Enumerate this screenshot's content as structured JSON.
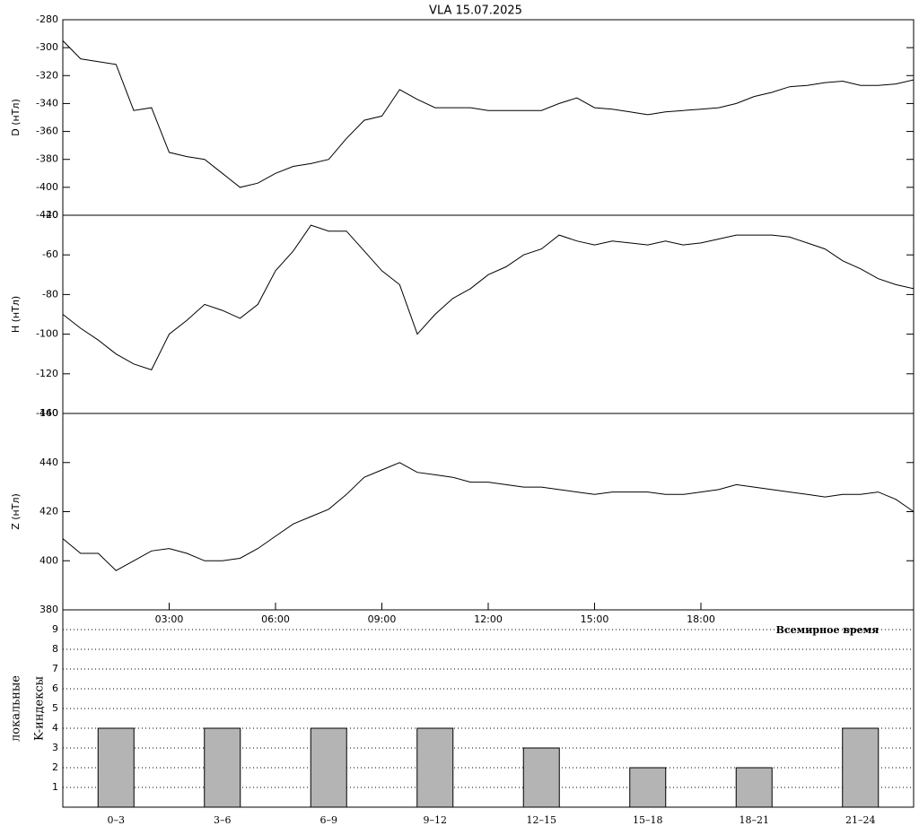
{
  "chart_data": [
    {
      "type": "line",
      "title": "VLA   15.07.2025",
      "ylabel": "D (нТл)",
      "color": "#000000",
      "x": [
        0,
        0.5,
        1,
        1.5,
        2,
        2.5,
        3,
        3.5,
        4,
        4.5,
        5,
        5.5,
        6,
        6.5,
        7,
        7.5,
        8,
        8.5,
        9,
        9.5,
        10,
        10.5,
        11,
        11.5,
        12,
        12.5,
        13,
        13.5,
        14,
        14.5,
        15,
        15.5,
        16,
        16.5,
        17,
        17.5,
        18,
        18.5,
        19,
        19.5,
        20,
        20.5,
        21,
        21.5,
        22,
        22.5,
        23,
        23.5,
        24
      ],
      "values": [
        -295,
        -308,
        -310,
        -312,
        -345,
        -343,
        -375,
        -378,
        -380,
        -390,
        -400,
        -397,
        -390,
        -385,
        -383,
        -380,
        -365,
        -352,
        -349,
        -330,
        -337,
        -343,
        -343,
        -343,
        -345,
        -345,
        -345,
        -345,
        -340,
        -336,
        -343,
        -344,
        -346,
        -348,
        -346,
        -345,
        -344,
        -343,
        -340,
        -335,
        -332,
        -328,
        -327,
        -325,
        -324,
        -327,
        -327,
        -326,
        -323
      ],
      "xlim": [
        0,
        24
      ],
      "ylim": [
        -420,
        -280
      ],
      "yticks": [
        -420,
        -400,
        -380,
        -360,
        -340,
        -320,
        -300,
        -280
      ]
    },
    {
      "type": "line",
      "ylabel": "H (нТл)",
      "color": "#000000",
      "x": [
        0,
        0.5,
        1,
        1.5,
        2,
        2.5,
        3,
        3.5,
        4,
        4.5,
        5,
        5.5,
        6,
        6.5,
        7,
        7.5,
        8,
        8.5,
        9,
        9.5,
        10,
        10.5,
        11,
        11.5,
        12,
        12.5,
        13,
        13.5,
        14,
        14.5,
        15,
        15.5,
        16,
        16.5,
        17,
        17.5,
        18,
        18.5,
        19,
        19.5,
        20,
        20.5,
        21,
        21.5,
        22,
        22.5,
        23,
        23.5,
        24
      ],
      "values": [
        -90,
        -97,
        -103,
        -110,
        -115,
        -118,
        -100,
        -93,
        -85,
        -88,
        -92,
        -85,
        -68,
        -58,
        -45,
        -48,
        -48,
        -58,
        -68,
        -75,
        -100,
        -90,
        -82,
        -77,
        -70,
        -66,
        -60,
        -57,
        -50,
        -53,
        -55,
        -53,
        -54,
        -55,
        -53,
        -55,
        -54,
        -52,
        -50,
        -50,
        -50,
        -51,
        -54,
        -57,
        -63,
        -67,
        -72,
        -75,
        -77
      ],
      "xlim": [
        0,
        24
      ],
      "ylim": [
        -140,
        -40
      ],
      "yticks": [
        -140,
        -120,
        -100,
        -80,
        -60,
        -40
      ]
    },
    {
      "type": "line",
      "ylabel": "Z (нТл)",
      "xlabel": "Всемирное время",
      "color": "#000000",
      "x": [
        0,
        0.5,
        1,
        1.5,
        2,
        2.5,
        3,
        3.5,
        4,
        4.5,
        5,
        5.5,
        6,
        6.5,
        7,
        7.5,
        8,
        8.5,
        9,
        9.5,
        10,
        10.5,
        11,
        11.5,
        12,
        12.5,
        13,
        13.5,
        14,
        14.5,
        15,
        15.5,
        16,
        16.5,
        17,
        17.5,
        18,
        18.5,
        19,
        19.5,
        20,
        20.5,
        21,
        21.5,
        22,
        22.5,
        23,
        23.5,
        24
      ],
      "values": [
        409,
        403,
        403,
        396,
        400,
        404,
        405,
        403,
        400,
        400,
        401,
        405,
        410,
        415,
        418,
        421,
        427,
        434,
        437,
        440,
        436,
        435,
        434,
        432,
        432,
        431,
        430,
        430,
        429,
        428,
        427,
        428,
        428,
        428,
        427,
        427,
        428,
        429,
        431,
        430,
        429,
        428,
        427,
        426,
        427,
        427,
        428,
        425,
        420
      ],
      "xlim": [
        0,
        24
      ],
      "ylim": [
        380,
        460
      ],
      "yticks": [
        380,
        400,
        420,
        440,
        460
      ],
      "xticks": [
        {
          "value": 3,
          "label": "03:00"
        },
        {
          "value": 6,
          "label": "06:00"
        },
        {
          "value": 9,
          "label": "09:00"
        },
        {
          "value": 12,
          "label": "12:00"
        },
        {
          "value": 15,
          "label": "15:00"
        },
        {
          "value": 18,
          "label": "18:00"
        }
      ]
    },
    {
      "type": "bar",
      "ylabel": [
        "локальные",
        "K-индексы"
      ],
      "color": "#b4b4b4",
      "grid": true,
      "categories": [
        "0–3",
        "3–6",
        "6–9",
        "9–12",
        "12–15",
        "15–18",
        "18–21",
        "21–24"
      ],
      "values": [
        4,
        4,
        4,
        4,
        3,
        2,
        2,
        4
      ],
      "ylim": [
        0,
        10
      ],
      "yticks": [
        1,
        2,
        3,
        4,
        5,
        6,
        7,
        8,
        9
      ]
    }
  ]
}
